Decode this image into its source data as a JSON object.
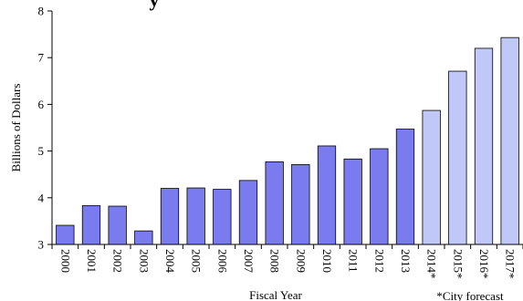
{
  "chart_data": {
    "type": "bar",
    "title": "y",
    "xlabel": "Fiscal Year",
    "ylabel": "Billions of Dollars",
    "ylim": [
      3,
      8
    ],
    "yticks": [
      3,
      4,
      5,
      6,
      7,
      8
    ],
    "grid": false,
    "categories": [
      "2000",
      "2001",
      "2002",
      "2003",
      "2004",
      "2005",
      "2006",
      "2007",
      "2008",
      "2009",
      "2010",
      "2011",
      "2012",
      "2013",
      "2014*",
      "2015*",
      "2016*",
      "2017*"
    ],
    "values": [
      3.41,
      3.83,
      3.82,
      3.29,
      4.2,
      4.21,
      4.18,
      4.37,
      4.77,
      4.71,
      5.11,
      4.83,
      5.05,
      5.47,
      5.87,
      6.71,
      7.2,
      7.43
    ],
    "forecast": [
      false,
      false,
      false,
      false,
      false,
      false,
      false,
      false,
      false,
      false,
      false,
      false,
      false,
      false,
      true,
      true,
      true,
      true
    ],
    "footnote": "*City forecast",
    "colors": {
      "actual_fill": "#7b7bf0",
      "forecast_fill": "#c0c8f8",
      "bar_stroke": "#000000"
    }
  }
}
